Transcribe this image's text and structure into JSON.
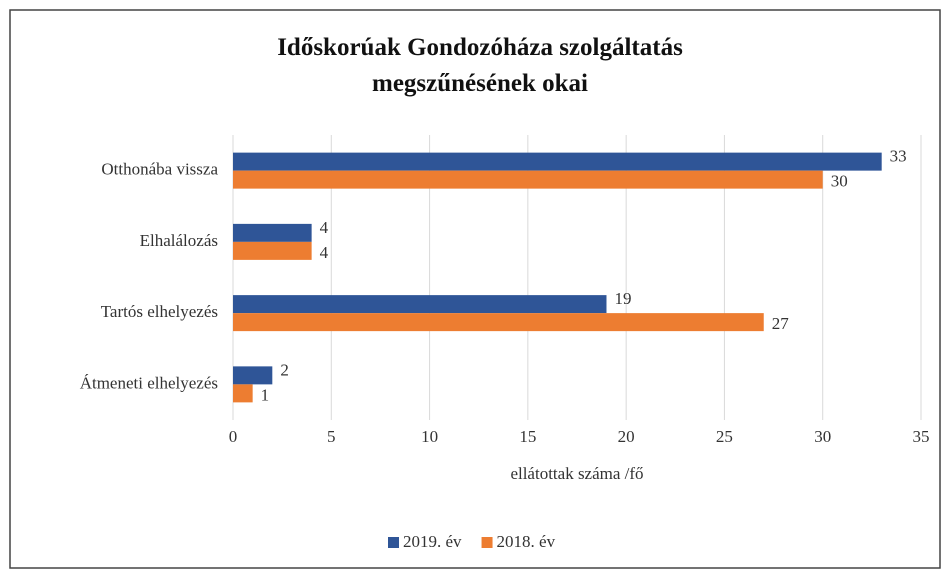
{
  "chart_data": {
    "type": "bar",
    "orientation": "horizontal",
    "title": "Időskorúak Gondozóháza szolgáltatás megszűnésének okai",
    "xlabel": "ellátottak száma /fő",
    "categories": [
      "Otthonába vissza",
      "Elhalálozás",
      "Tartós elhelyezés",
      "Átmeneti elhelyezés"
    ],
    "series": [
      {
        "name": "2019. év",
        "color": "#2f5597",
        "values": [
          33,
          4,
          19,
          2
        ]
      },
      {
        "name": "2018. év",
        "color": "#ed7d31",
        "values": [
          30,
          4,
          27,
          1
        ]
      }
    ],
    "xlim": [
      0,
      35
    ],
    "xticks": [
      0,
      5,
      10,
      15,
      20,
      25,
      30,
      35
    ],
    "grid": true,
    "legend": "bottom"
  }
}
